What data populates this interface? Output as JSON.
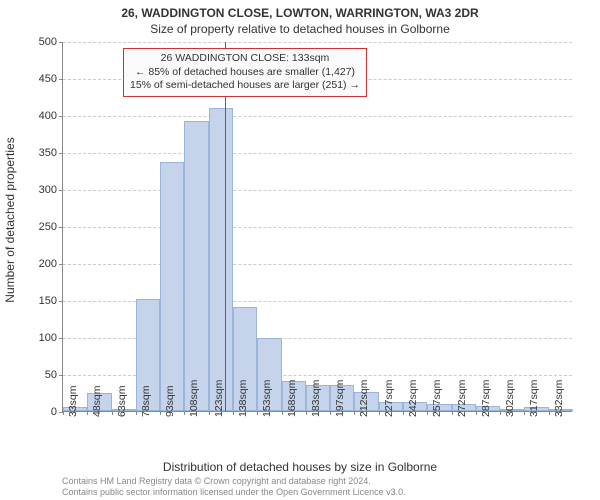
{
  "title_line1": "26, WADDINGTON CLOSE, LOWTON, WARRINGTON, WA3 2DR",
  "title_line2": "Size of property relative to detached houses in Golborne",
  "y_axis_label": "Number of detached properties",
  "x_axis_label": "Distribution of detached houses by size in Golborne",
  "footer_line1": "Contains HM Land Registry data © Crown copyright and database right 2024.",
  "footer_line2": "Contains public sector information licensed under the Open Government Licence v3.0.",
  "chart": {
    "type": "histogram",
    "ylim": [
      0,
      500
    ],
    "ytick_step": 50,
    "yticks": [
      0,
      50,
      100,
      150,
      200,
      250,
      300,
      350,
      400,
      450,
      500
    ],
    "x_categories": [
      "33sqm",
      "48sqm",
      "63sqm",
      "78sqm",
      "93sqm",
      "108sqm",
      "123sqm",
      "138sqm",
      "153sqm",
      "168sqm",
      "183sqm",
      "197sqm",
      "212sqm",
      "227sqm",
      "242sqm",
      "257sqm",
      "272sqm",
      "287sqm",
      "302sqm",
      "317sqm",
      "332sqm"
    ],
    "values": [
      5,
      25,
      2,
      152,
      336,
      392,
      410,
      140,
      98,
      40,
      35,
      35,
      26,
      12,
      12,
      10,
      10,
      7,
      2,
      5,
      3
    ],
    "bar_fill": "#c5d4ea",
    "bar_border": "#9bb4d8",
    "grid_color": "#cccccc",
    "axis_color": "#888888",
    "background_color": "#ffffff",
    "bar_width_ratio": 1.0,
    "marker": {
      "value_category_index": 6.67,
      "color": "#cc3333",
      "callout_lines": [
        "26 WADDINGTON CLOSE: 133sqm",
        "← 85% of detached houses are smaller (1,427)",
        "15% of semi-detached houses are larger (251) →"
      ],
      "callout_border": "#cc3333",
      "callout_bg": "#fafafa"
    }
  },
  "fonts": {
    "title_size_pt": 12,
    "axis_label_size_pt": 12,
    "tick_size_pt": 11,
    "callout_size_pt": 10.5,
    "footer_size_pt": 9
  }
}
